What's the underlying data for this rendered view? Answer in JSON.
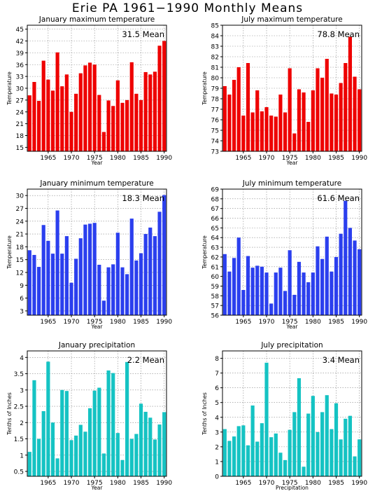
{
  "page_title": "Erie PA   1961−1990 Monthly Means",
  "colors": {
    "red": "#ee0000",
    "blue": "#2b3fee",
    "teal": "#15c3c3",
    "grid": "#888888"
  },
  "chart_data": [
    {
      "type": "bar",
      "title": "January maximum temperature",
      "xlabel": "Year",
      "ylabel": "Temperature",
      "mean_label": "31.5  Mean",
      "color": "red",
      "x": [
        1961,
        1962,
        1963,
        1964,
        1965,
        1966,
        1967,
        1968,
        1969,
        1970,
        1971,
        1972,
        1973,
        1974,
        1975,
        1976,
        1977,
        1978,
        1979,
        1980,
        1981,
        1982,
        1983,
        1984,
        1985,
        1986,
        1987,
        1988,
        1989,
        1990
      ],
      "values": [
        28.2,
        31.6,
        26.8,
        37.0,
        32.2,
        29.4,
        39.1,
        30.5,
        33.5,
        24.0,
        28.6,
        33.8,
        35.8,
        36.5,
        36.0,
        28.3,
        18.9,
        26.9,
        25.5,
        32.0,
        26.3,
        27.0,
        36.6,
        28.6,
        27.0,
        34.1,
        33.5,
        34.2,
        40.8,
        42.0
      ],
      "xlim": [
        1960.5,
        1990.5
      ],
      "ylim": [
        14,
        46
      ],
      "yticks": [
        15,
        18,
        21,
        24,
        27,
        30,
        33,
        36,
        39,
        42,
        45
      ],
      "xticks": [
        1965,
        1970,
        1975,
        1980,
        1985,
        1990
      ],
      "grid": true
    },
    {
      "type": "bar",
      "title": "July maximum temperature",
      "xlabel": "Year",
      "ylabel": "Temperature",
      "mean_label": "78.8  Mean",
      "color": "red",
      "x": [
        1961,
        1962,
        1963,
        1964,
        1965,
        1966,
        1967,
        1968,
        1969,
        1970,
        1971,
        1972,
        1973,
        1974,
        1975,
        1976,
        1977,
        1978,
        1979,
        1980,
        1981,
        1982,
        1983,
        1984,
        1985,
        1986,
        1987,
        1988,
        1989,
        1990
      ],
      "values": [
        79.2,
        78.4,
        79.8,
        81.0,
        76.4,
        81.4,
        76.7,
        78.8,
        76.8,
        77.2,
        76.4,
        76.3,
        78.4,
        76.7,
        80.9,
        74.7,
        78.9,
        78.6,
        75.8,
        78.8,
        80.9,
        80.0,
        81.8,
        78.5,
        78.4,
        79.5,
        81.4,
        83.9,
        80.1,
        78.9
      ],
      "xlim": [
        1960.5,
        1990.5
      ],
      "ylim": [
        73,
        85
      ],
      "yticks": [
        73,
        74,
        75,
        76,
        77,
        78,
        79,
        80,
        81,
        82,
        83,
        84,
        85
      ],
      "xticks": [
        1965,
        1970,
        1975,
        1980,
        1985,
        1990
      ],
      "grid": true
    },
    {
      "type": "bar",
      "title": "January minimum temperature",
      "xlabel": "Year",
      "ylabel": "Temperature",
      "mean_label": "18.3  Mean",
      "color": "blue",
      "x": [
        1961,
        1962,
        1963,
        1964,
        1965,
        1966,
        1967,
        1968,
        1969,
        1970,
        1971,
        1972,
        1973,
        1974,
        1975,
        1976,
        1977,
        1978,
        1979,
        1980,
        1981,
        1982,
        1983,
        1984,
        1985,
        1986,
        1987,
        1988,
        1989,
        1990
      ],
      "values": [
        17.2,
        16.1,
        13.3,
        23.1,
        19.4,
        16.4,
        26.5,
        16.4,
        20.5,
        9.6,
        15.2,
        20.0,
        23.2,
        23.4,
        23.6,
        13.8,
        5.4,
        13.2,
        13.9,
        21.3,
        13.2,
        11.6,
        24.6,
        14.8,
        16.5,
        21.0,
        22.5,
        20.5,
        26.2,
        30.1
      ],
      "xlim": [
        1960.5,
        1990.5
      ],
      "ylim": [
        2,
        31.5
      ],
      "yticks": [
        3,
        6,
        9,
        12,
        15,
        18,
        21,
        24,
        27,
        30
      ],
      "xticks": [
        1965,
        1970,
        1975,
        1980,
        1985,
        1990
      ],
      "grid": true
    },
    {
      "type": "bar",
      "title": "July minimum temperature",
      "xlabel": "Year",
      "ylabel": "Temperature",
      "mean_label": "61.6  Mean",
      "color": "blue",
      "x": [
        1961,
        1962,
        1963,
        1964,
        1965,
        1966,
        1967,
        1968,
        1969,
        1970,
        1971,
        1972,
        1973,
        1974,
        1975,
        1976,
        1977,
        1978,
        1979,
        1980,
        1981,
        1982,
        1983,
        1984,
        1985,
        1986,
        1987,
        1988,
        1989,
        1990
      ],
      "values": [
        62.3,
        60.5,
        61.9,
        64.0,
        58.6,
        62.1,
        60.9,
        61.1,
        61.0,
        60.4,
        57.2,
        60.4,
        60.9,
        58.5,
        62.7,
        58.1,
        61.5,
        60.4,
        59.4,
        60.4,
        63.1,
        61.8,
        64.1,
        60.5,
        62.0,
        64.4,
        67.8,
        65.0,
        63.7,
        62.8
      ],
      "xlim": [
        1960.5,
        1990.5
      ],
      "ylim": [
        56,
        69
      ],
      "yticks": [
        56,
        57,
        58,
        59,
        60,
        61,
        62,
        63,
        64,
        65,
        66,
        67,
        68,
        69
      ],
      "xticks": [
        1965,
        1970,
        1975,
        1980,
        1985,
        1990
      ],
      "grid": true
    },
    {
      "type": "bar",
      "title": "January precipitation",
      "xlabel": "Year",
      "ylabel": "Tenths of Inches",
      "mean_label": "2.2  Mean",
      "color": "teal",
      "x": [
        1961,
        1962,
        1963,
        1964,
        1965,
        1966,
        1967,
        1968,
        1969,
        1970,
        1971,
        1972,
        1973,
        1974,
        1975,
        1976,
        1977,
        1978,
        1979,
        1980,
        1981,
        1982,
        1983,
        1984,
        1985,
        1986,
        1987,
        1988,
        1989,
        1990
      ],
      "values": [
        1.1,
        3.3,
        1.5,
        2.35,
        3.87,
        2.0,
        0.9,
        3.0,
        2.97,
        1.46,
        1.6,
        1.93,
        1.72,
        2.44,
        2.98,
        3.07,
        1.05,
        3.6,
        3.52,
        1.68,
        0.85,
        3.86,
        1.5,
        1.65,
        2.58,
        2.33,
        2.15,
        1.48,
        1.94,
        2.32
      ],
      "xlim": [
        1960.5,
        1990.5
      ],
      "ylim": [
        0.35,
        4.2
      ],
      "yticks": [
        0.5,
        1,
        1.5,
        2,
        2.5,
        3,
        3.5,
        4
      ],
      "ytick_labels": [
        "0.5",
        "1",
        "1.5",
        "2",
        "2.5",
        "3",
        "3.5",
        "4"
      ],
      "xticks": [
        1965,
        1970,
        1975,
        1980,
        1985,
        1990
      ],
      "grid": true
    },
    {
      "type": "bar",
      "title": "July precipitation",
      "xlabel": "Precipitation",
      "ylabel": "Tenths of Inches",
      "mean_label": "3.4  Mean",
      "color": "teal",
      "x": [
        1961,
        1962,
        1963,
        1964,
        1965,
        1966,
        1967,
        1968,
        1969,
        1970,
        1971,
        1972,
        1973,
        1974,
        1975,
        1976,
        1977,
        1978,
        1979,
        1980,
        1981,
        1982,
        1983,
        1984,
        1985,
        1986,
        1987,
        1988,
        1989,
        1990
      ],
      "values": [
        3.2,
        2.4,
        2.7,
        3.4,
        3.45,
        2.1,
        4.8,
        2.35,
        3.6,
        7.7,
        2.65,
        2.9,
        1.6,
        1.1,
        3.15,
        4.35,
        6.65,
        0.65,
        4.25,
        5.45,
        3.0,
        4.35,
        5.5,
        3.2,
        4.95,
        2.5,
        3.9,
        4.1,
        1.35,
        2.5
      ],
      "xlim": [
        1960.5,
        1990.5
      ],
      "ylim": [
        0,
        8.5
      ],
      "yticks": [
        0,
        1,
        2,
        3,
        4,
        5,
        6,
        7,
        8
      ],
      "xticks": [
        1965,
        1970,
        1975,
        1980,
        1985,
        1990
      ],
      "grid": true
    }
  ]
}
